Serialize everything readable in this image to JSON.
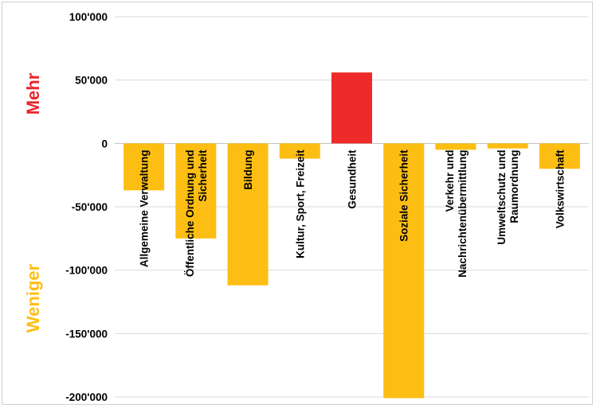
{
  "chart_data": {
    "type": "bar",
    "categories": [
      [
        "Allgemeine Verwaltung"
      ],
      [
        "Öffentliche Ordnung und",
        "Sicherheit"
      ],
      [
        "Bildung"
      ],
      [
        "Kultur, Sport, Freizeit"
      ],
      [
        "Gesundheit"
      ],
      [
        "Soziale Sicherheit"
      ],
      [
        "Verkehr und",
        "Nachrichtenübermittlung"
      ],
      [
        "Umweltschutz und",
        "Raumordnung"
      ],
      [
        "Volkswirtschaft"
      ]
    ],
    "values": [
      -37000,
      -75000,
      -112000,
      -12000,
      56000,
      -201000,
      -5000,
      -4000,
      -20000
    ],
    "ylim": [
      -200000,
      100000
    ],
    "yticks": [
      100000,
      50000,
      0,
      -50000,
      -100000,
      -150000,
      -200000
    ],
    "ytick_labels": [
      "100'000",
      "50'000",
      "0",
      "-50'000",
      "-100'000",
      "-150'000",
      "-200'000"
    ],
    "grid": true,
    "colors": {
      "positive": "#ee2a2a",
      "negative": "#fdbe13",
      "grid": "#d9d9d9",
      "axis": "#bfbfbf"
    },
    "side_labels": {
      "top": {
        "text": "Mehr",
        "color": "#e7262b"
      },
      "bottom": {
        "text": "Weniger",
        "color": "#fdbe13"
      }
    }
  }
}
